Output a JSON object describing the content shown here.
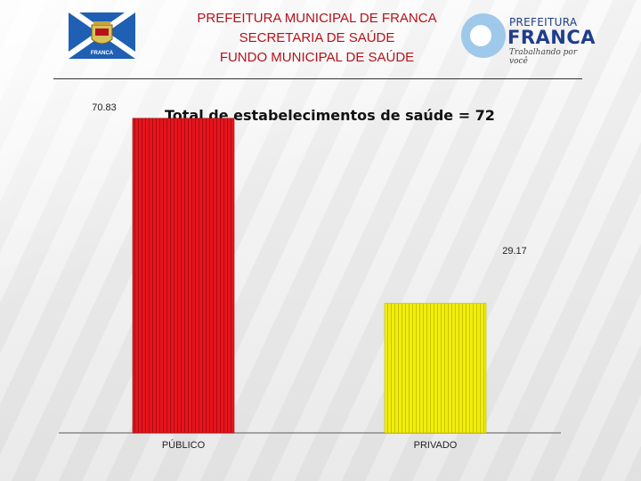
{
  "header": {
    "line1": "PREFEITURA MUNICIPAL DE FRANCA",
    "line2": "SECRETARIA DE SAÚDE",
    "line3": "FUNDO MUNICIPAL DE SAÚDE",
    "crest_text": "FRANCA",
    "logo_line1": "PREFEITURA",
    "logo_line2": "FRANCA",
    "logo_tagline": "Trabalhando por você"
  },
  "colors": {
    "title_red": "#b5121b",
    "bar_publico": "#e8141c",
    "bar_privado": "#f2ee0c",
    "logo_blue": "#1f3d8a"
  },
  "chart_data": {
    "type": "bar",
    "title": "Total de estabelecimentos de saúde = 72",
    "categories": [
      "PÚBLICO",
      "PRIVADO"
    ],
    "values": [
      70.83,
      29.17
    ],
    "value_labels": [
      "70.83",
      "29.17"
    ],
    "unit": "%",
    "xlabel": "",
    "ylabel": "",
    "ylim": [
      0,
      75
    ],
    "grid": false,
    "legend": "none"
  }
}
